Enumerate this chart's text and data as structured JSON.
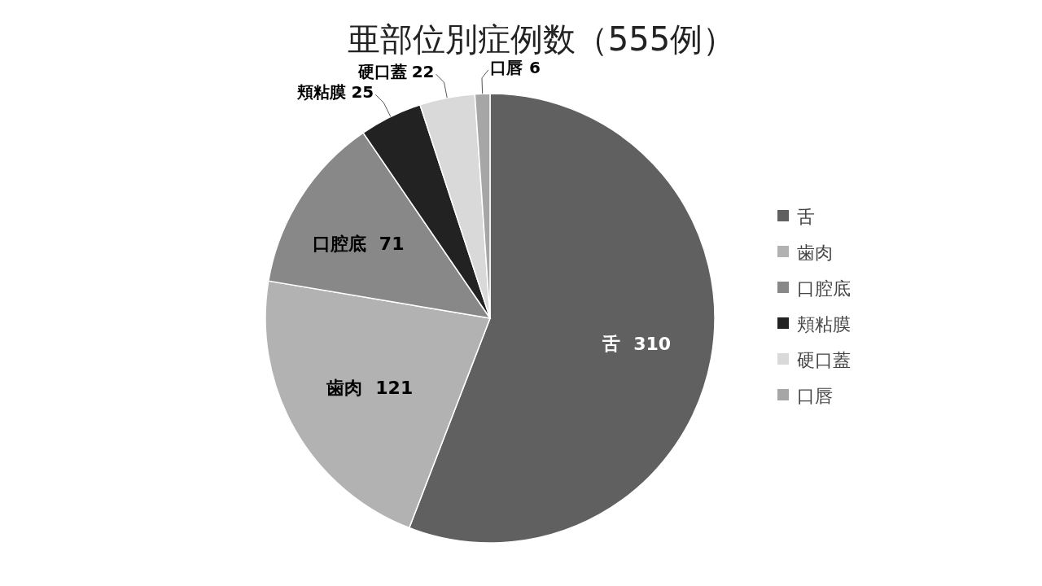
{
  "chart_data": {
    "type": "pie",
    "title": "亜部位別症例数（555例）",
    "categories": [
      "舌",
      "歯肉",
      "口腔底",
      "頬粘膜",
      "硬口蓋",
      "口唇"
    ],
    "values": [
      310,
      121,
      71,
      25,
      22,
      6
    ],
    "colors": [
      "#606060",
      "#b2b2b2",
      "#888888",
      "#222222",
      "#d9d9d9",
      "#a6a6a6"
    ],
    "data_labels": true,
    "legend": "right"
  }
}
